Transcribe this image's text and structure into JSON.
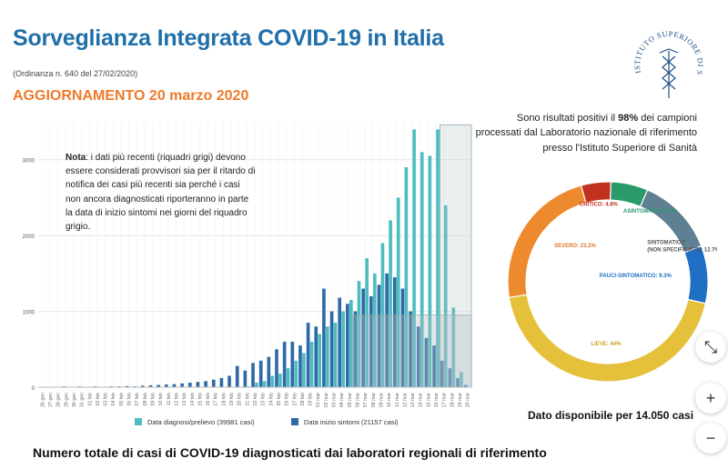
{
  "header": {
    "title": "Sorveglianza Integrata COVID-19 in Italia",
    "ordinance": "(Ordinanza n. 640 del 27/02/2020)",
    "update": "AGGIORNAMENTO 20 marzo 2020"
  },
  "logo": {
    "text": "ISTITUTO SUPERIORE DI SANITÀ",
    "icon": "caduceus-icon"
  },
  "note": {
    "bold": "Nota",
    "text": ": i dati più recenti (riquadri grigi) devono essere considerati provvisori sia per il ritardo di notifica dei casi più recenti sia perché i casi non ancora diagnosticati riporteranno in parte la data di inizio sintomi nei giorni del riquadro grigio."
  },
  "bottom_title": "Numero totale di casi di COVID-19 diagnosticati dai laboratori regionali di riferimento",
  "pie_intro": {
    "before": "Sono risultati positivi il ",
    "bold": "98%",
    "after": " dei campioni processati dal Laboratorio nazionale di riferimento presso l'Istituto Superiore di Sanità"
  },
  "pie_footer": "Dato disponibile per 14.050 casi",
  "controls": {
    "fit": "⤡",
    "zoom_in": "+",
    "zoom_out": "−"
  },
  "colors": {
    "diagnosi": "#4dbdbf",
    "sintomi": "#2d6aa6",
    "title": "#1f6fa8",
    "update": "#ee7a2b"
  },
  "chart_data": [
    {
      "type": "bar",
      "categories": [
        "26 gen",
        "27 gen",
        "28 gen",
        "29 gen",
        "30 gen",
        "31 gen",
        "01 feb",
        "02 feb",
        "03 feb",
        "04 feb",
        "05 feb",
        "06 feb",
        "07 feb",
        "08 feb",
        "09 feb",
        "10 feb",
        "11 feb",
        "12 feb",
        "13 feb",
        "14 feb",
        "15 feb",
        "16 feb",
        "17 feb",
        "18 feb",
        "19 feb",
        "20 feb",
        "21 feb",
        "22 feb",
        "23 feb",
        "24 feb",
        "25 feb",
        "26 feb",
        "27 feb",
        "28 feb",
        "29 feb",
        "01 mar",
        "02 mar",
        "03 mar",
        "04 mar",
        "05 mar",
        "06 mar",
        "07 mar",
        "08 mar",
        "09 mar",
        "10 mar",
        "11 mar",
        "12 mar",
        "13 mar",
        "14 mar",
        "15 mar",
        "16 mar",
        "17 mar",
        "18 mar",
        "19 mar",
        "20 mar"
      ],
      "ytick_labels": [
        "0",
        "1000",
        "2000",
        "3000"
      ],
      "ylim": [
        0,
        3500
      ],
      "series": [
        {
          "name": "Data diagnosi/prelievo (39981 casi)",
          "color": "#4dbdbf",
          "values": [
            0,
            0,
            0,
            0,
            0,
            0,
            0,
            0,
            0,
            0,
            0,
            0,
            0,
            0,
            0,
            0,
            0,
            0,
            0,
            0,
            0,
            0,
            0,
            0,
            0,
            0,
            10,
            60,
            80,
            150,
            180,
            250,
            350,
            450,
            600,
            700,
            800,
            850,
            1000,
            1150,
            1400,
            1700,
            1500,
            1900,
            2200,
            2500,
            2900,
            3400,
            3100,
            3050,
            3400,
            2400,
            1050,
            200,
            0
          ]
        },
        {
          "name": "Data inizio sintomi (21157 casi)",
          "color": "#2d6aa6",
          "values": [
            5,
            5,
            5,
            10,
            5,
            10,
            5,
            10,
            5,
            10,
            10,
            15,
            10,
            20,
            25,
            30,
            35,
            40,
            50,
            60,
            70,
            80,
            100,
            120,
            150,
            280,
            220,
            320,
            350,
            400,
            500,
            600,
            600,
            550,
            850,
            800,
            1300,
            1000,
            1180,
            1100,
            1000,
            1300,
            1200,
            1350,
            1500,
            1450,
            1300,
            1000,
            800,
            650,
            550,
            350,
            250,
            120,
            30
          ]
        }
      ],
      "provisional_from": "06 mar"
    },
    {
      "type": "pie",
      "labels": [
        "CRITICO: 4.8%",
        "ASINTOMATICO: 6%",
        "SINTOMATICO (NON SPECIFICATO): 12.7%",
        "PAUCI-SINTOMATICO: 9.3%",
        "LIEVE: 44%",
        "SEVERO: 23.2%"
      ],
      "values": [
        4.8,
        6,
        12.7,
        9.3,
        44,
        23.2
      ],
      "colors": [
        "#c0321f",
        "#2a9a6a",
        "#5f7f93",
        "#1f6fc4",
        "#e5c03a",
        "#ee8a2e"
      ]
    }
  ]
}
